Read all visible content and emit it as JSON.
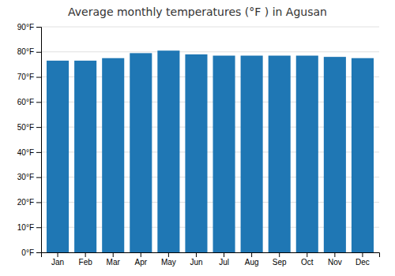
{
  "chart_data": {
    "type": "bar",
    "title": "Average monthly temperatures (°F ) in Agusan",
    "categories": [
      "Jan",
      "Feb",
      "Mar",
      "Apr",
      "May",
      "Jun",
      "Jul",
      "Aug",
      "Sep",
      "Oct",
      "Nov",
      "Dec"
    ],
    "values": [
      76.5,
      76.5,
      77.5,
      79.5,
      80.5,
      79.0,
      78.5,
      78.5,
      78.5,
      78.5,
      78.0,
      77.5
    ],
    "ylim": [
      0,
      90
    ],
    "yticks": [
      {
        "value": 0,
        "label": "0°F"
      },
      {
        "value": 10,
        "label": "10°F"
      },
      {
        "value": 20,
        "label": "20°F"
      },
      {
        "value": 30,
        "label": "30°F"
      },
      {
        "value": 40,
        "label": "40°F"
      },
      {
        "value": 50,
        "label": "50°F"
      },
      {
        "value": 60,
        "label": "60°F"
      },
      {
        "value": 70,
        "label": "70°F"
      },
      {
        "value": 80,
        "label": "80°F"
      },
      {
        "value": 90,
        "label": "90°F"
      }
    ],
    "grid": true
  }
}
